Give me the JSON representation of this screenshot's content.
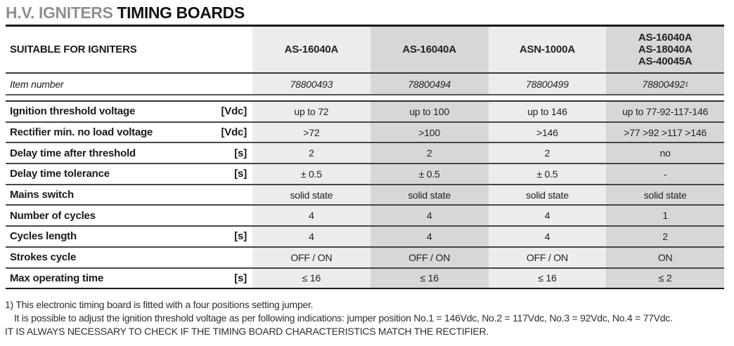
{
  "title": {
    "gray": "H.V. IGNITERS",
    "black": "TIMING BOARDS"
  },
  "colors": {
    "column_light": "#ececec",
    "column_dark": "#d7d7d7",
    "title_gray": "#8e9194",
    "rule_dark": "#191919"
  },
  "table": {
    "header": {
      "label": "SUITABLE FOR IGNITERS",
      "columns": [
        [
          "AS-16040A"
        ],
        [
          "AS-16040A"
        ],
        [
          "ASN-1000A"
        ],
        [
          "AS-16040A",
          "AS-18040A",
          "AS-40045A"
        ]
      ]
    },
    "item_row": {
      "label": "Item number",
      "values": [
        "78800493",
        "78800494",
        "78800499",
        "78800492"
      ],
      "sup": "1"
    },
    "rows": [
      {
        "label": "Ignition threshold voltage",
        "unit": "[Vdc]",
        "values": [
          "up to 72",
          "up to 100",
          "up to 146",
          "up to 77-92-117-146"
        ]
      },
      {
        "label": "Rectifier min. no load voltage",
        "unit": "[Vdc]",
        "values": [
          ">72",
          ">100",
          ">146",
          ">77 >92 >117 >146"
        ]
      },
      {
        "label": "Delay time after threshold",
        "unit": "[s]",
        "values": [
          "2",
          "2",
          "2",
          "no"
        ]
      },
      {
        "label": "Delay time tolerance",
        "unit": "[s]",
        "values": [
          "± 0.5",
          "± 0.5",
          "± 0.5",
          "-"
        ]
      },
      {
        "label": "Mains switch",
        "unit": "",
        "values": [
          "solid state",
          "solid state",
          "solid state",
          "solid state"
        ]
      },
      {
        "label": "Number of cycles",
        "unit": "",
        "values": [
          "4",
          "4",
          "4",
          "1"
        ]
      },
      {
        "label": "Cycles length",
        "unit": "[s]",
        "values": [
          "4",
          "4",
          "4",
          "2"
        ]
      },
      {
        "label": "Strokes cycle",
        "unit": "",
        "values": [
          "OFF / ON",
          "OFF / ON",
          "OFF / ON",
          "ON"
        ]
      },
      {
        "label": "Max operating time",
        "unit": "[s]",
        "values": [
          "≤ 16",
          "≤ 16",
          "≤ 16",
          "≤ 2"
        ]
      }
    ]
  },
  "footnotes": {
    "line1": "1) This electronic timing board is fitted with a four positions setting jumper.",
    "line2": "It is possible to adjust the ignition threshold voltage as per following indications: jumper position No.1 = 146Vdc,  No.2 = 117Vdc, No.3 = 92Vdc, No.4 = 77Vdc.",
    "line3": "IT IS ALWAYS NECESSARY TO CHECK IF THE TIMING BOARD CHARACTERISTICS MATCH THE RECTIFIER."
  }
}
